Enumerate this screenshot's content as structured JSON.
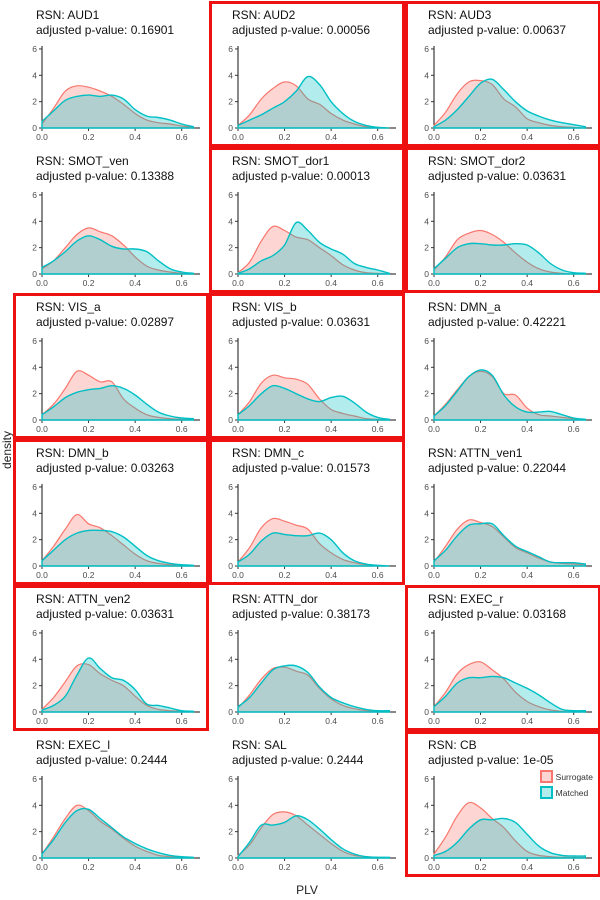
{
  "figure": {
    "ylabel": "density",
    "xlabel": "PLV",
    "colors": {
      "surrogate_line": "#F8766D",
      "surrogate_fill": "rgba(248,118,109,0.3)",
      "matched_line": "#00BFC4",
      "matched_fill": "rgba(0,191,196,0.3)",
      "highlight_border": "#ee1111"
    },
    "legend": [
      {
        "label": "Surrogate",
        "series": "surrogate"
      },
      {
        "label": "Matched",
        "series": "matched"
      }
    ]
  },
  "chart_data": {
    "type": "area",
    "description": "Grid of 18 kernel density plots of PLV per resting-state network; red-outlined panels are significant (adjusted p < 0.05). Two series per panel: Surrogate (salmon) and Matched (teal).",
    "x": [
      0,
      0.05,
      0.1,
      0.15,
      0.2,
      0.25,
      0.3,
      0.35,
      0.4,
      0.45,
      0.5,
      0.55,
      0.6,
      0.65
    ],
    "xlim": [
      0,
      0.67
    ],
    "ylim": [
      0,
      6.3
    ],
    "x_ticks": [
      {
        "v": 0,
        "label": "0.0"
      },
      {
        "v": 0.2,
        "label": "0.2"
      },
      {
        "v": 0.4,
        "label": "0.4"
      },
      {
        "v": 0.6,
        "label": "0.6"
      }
    ],
    "y_ticks": [
      {
        "v": 0,
        "label": "0"
      },
      {
        "v": 2,
        "label": "2"
      },
      {
        "v": 4,
        "label": "4"
      },
      {
        "v": 6,
        "label": "6"
      }
    ],
    "panels": [
      {
        "rsn": "AUD1",
        "title": "RSN: AUD1",
        "subtitle": "adjusted p-value: 0.16901",
        "adjusted_p": 0.16901,
        "significant": false,
        "has_legend": false,
        "surrogate": [
          0.3,
          1.5,
          2.8,
          3.2,
          3.1,
          2.8,
          2.4,
          1.8,
          1.1,
          0.6,
          0.4,
          0.3,
          0.15,
          0.05
        ],
        "matched": [
          0.5,
          1.3,
          2.1,
          2.4,
          2.5,
          2.4,
          2.5,
          2.2,
          1.4,
          0.9,
          0.8,
          0.6,
          0.3,
          0.1
        ]
      },
      {
        "rsn": "AUD2",
        "title": "RSN: AUD2",
        "subtitle": "adjusted p-value: 0.00056",
        "adjusted_p": 0.00056,
        "significant": true,
        "has_legend": false,
        "surrogate": [
          0.2,
          1.0,
          2.2,
          3.0,
          3.5,
          3.2,
          2.2,
          1.8,
          1.1,
          0.6,
          0.3,
          0.1,
          0.05,
          0
        ],
        "matched": [
          0.2,
          0.6,
          1.0,
          1.5,
          2.0,
          2.8,
          3.9,
          3.3,
          2.0,
          1.1,
          0.5,
          0.2,
          0.05,
          0
        ]
      },
      {
        "rsn": "AUD3",
        "title": "RSN: AUD3",
        "subtitle": "adjusted p-value: 0.00637",
        "adjusted_p": 0.00637,
        "significant": true,
        "has_legend": false,
        "surrogate": [
          0.2,
          1.2,
          2.6,
          3.5,
          3.6,
          3.3,
          2.2,
          1.6,
          0.7,
          0.4,
          0.2,
          0.1,
          0.05,
          0
        ],
        "matched": [
          0.1,
          0.6,
          1.4,
          2.4,
          3.4,
          3.7,
          2.9,
          2.0,
          1.3,
          0.9,
          0.6,
          0.4,
          0.25,
          0.1
        ]
      },
      {
        "rsn": "SMOT_ven",
        "title": "RSN: SMOT_ven",
        "subtitle": "adjusted p-value: 0.13388",
        "adjusted_p": 0.13388,
        "significant": false,
        "has_legend": false,
        "surrogate": [
          0.4,
          1.0,
          2.0,
          3.0,
          3.5,
          3.2,
          2.9,
          2.2,
          1.3,
          0.6,
          0.3,
          0.15,
          0.05,
          0
        ],
        "matched": [
          0.5,
          1.0,
          1.7,
          2.5,
          2.9,
          2.6,
          2.1,
          1.9,
          1.9,
          1.7,
          1.0,
          0.4,
          0.15,
          0.05
        ]
      },
      {
        "rsn": "SMOT_dor1",
        "title": "RSN: SMOT_dor1",
        "subtitle": "adjusted p-value: 0.00013",
        "adjusted_p": 0.00013,
        "significant": true,
        "has_legend": false,
        "surrogate": [
          0.1,
          0.9,
          2.5,
          3.6,
          3.3,
          2.8,
          2.6,
          2.0,
          1.4,
          0.7,
          0.3,
          0.1,
          0.05,
          0
        ],
        "matched": [
          0.05,
          0.4,
          1.0,
          1.4,
          2.2,
          3.9,
          3.3,
          2.4,
          1.9,
          1.5,
          0.8,
          0.5,
          0.3,
          0.05
        ]
      },
      {
        "rsn": "SMOT_dor2",
        "title": "RSN: SMOT_dor2",
        "subtitle": "adjusted p-value: 0.03631",
        "adjusted_p": 0.03631,
        "significant": true,
        "has_legend": false,
        "surrogate": [
          0.3,
          1.3,
          2.6,
          3.1,
          3.3,
          3.0,
          2.4,
          1.6,
          0.9,
          0.4,
          0.15,
          0.05,
          0,
          0
        ],
        "matched": [
          0.4,
          1.2,
          2.0,
          2.3,
          2.3,
          2.2,
          2.2,
          2.3,
          2.2,
          1.6,
          0.8,
          0.3,
          0.1,
          0.05
        ]
      },
      {
        "rsn": "VIS_a",
        "title": "RSN: VIS_a",
        "subtitle": "adjusted p-value: 0.02897",
        "adjusted_p": 0.02897,
        "significant": true,
        "has_legend": false,
        "surrogate": [
          0.4,
          1.2,
          2.4,
          3.7,
          3.4,
          2.9,
          2.9,
          1.6,
          0.9,
          0.4,
          0.2,
          0.1,
          0.05,
          0
        ],
        "matched": [
          0.4,
          1.0,
          1.7,
          2.1,
          2.3,
          2.4,
          2.6,
          2.4,
          1.9,
          1.2,
          0.6,
          0.3,
          0.15,
          0.1
        ]
      },
      {
        "rsn": "VIS_b",
        "title": "RSN: VIS_b",
        "subtitle": "adjusted p-value: 0.03631",
        "adjusted_p": 0.03631,
        "significant": true,
        "has_legend": false,
        "surrogate": [
          0.4,
          1.4,
          2.8,
          3.4,
          3.2,
          3.1,
          2.7,
          1.6,
          0.8,
          0.5,
          0.3,
          0.1,
          0.05,
          0
        ],
        "matched": [
          0.4,
          1.1,
          2.0,
          2.6,
          2.4,
          2.0,
          1.6,
          1.4,
          1.7,
          1.8,
          1.3,
          0.6,
          0.2,
          0.05
        ]
      },
      {
        "rsn": "DMN_a",
        "title": "RSN: DMN_a",
        "subtitle": "adjusted p-value: 0.42221",
        "adjusted_p": 0.42221,
        "significant": false,
        "has_legend": false,
        "surrogate": [
          0.3,
          1.2,
          2.3,
          3.3,
          3.7,
          3.3,
          2.0,
          1.9,
          0.9,
          0.4,
          0.3,
          0.2,
          0.1,
          0
        ],
        "matched": [
          0.3,
          1.1,
          2.2,
          3.3,
          3.8,
          3.4,
          1.9,
          1.0,
          0.6,
          0.6,
          0.65,
          0.4,
          0.15,
          0.05
        ]
      },
      {
        "rsn": "DMN_b",
        "title": "RSN: DMN_b",
        "subtitle": "adjusted p-value: 0.03263",
        "adjusted_p": 0.03263,
        "significant": true,
        "has_legend": false,
        "surrogate": [
          0.4,
          1.5,
          2.8,
          3.9,
          3.2,
          2.9,
          2.3,
          1.6,
          0.9,
          0.4,
          0.2,
          0.1,
          0.05,
          0
        ],
        "matched": [
          0.4,
          1.2,
          2.0,
          2.5,
          2.7,
          2.7,
          2.6,
          2.2,
          1.5,
          0.8,
          0.4,
          0.2,
          0.1,
          0.05
        ]
      },
      {
        "rsn": "DMN_c",
        "title": "RSN: DMN_c",
        "subtitle": "adjusted p-value: 0.01573",
        "adjusted_p": 0.01573,
        "significant": true,
        "has_legend": false,
        "surrogate": [
          0.3,
          1.4,
          2.9,
          3.6,
          3.4,
          3.1,
          2.8,
          1.7,
          1.0,
          0.5,
          0.25,
          0.1,
          0.05,
          0
        ],
        "matched": [
          0.3,
          0.9,
          1.9,
          2.5,
          2.4,
          2.3,
          2.3,
          2.5,
          2.0,
          1.0,
          0.4,
          0.15,
          0.05,
          0
        ]
      },
      {
        "rsn": "ATTN_ven1",
        "title": "RSN: ATTN_ven1",
        "subtitle": "adjusted p-value: 0.22044",
        "adjusted_p": 0.22044,
        "significant": false,
        "has_legend": false,
        "surrogate": [
          0.3,
          1.5,
          2.8,
          3.5,
          3.3,
          3.0,
          2.2,
          1.4,
          1.0,
          0.6,
          0.3,
          0.2,
          0.15,
          0.1
        ],
        "matched": [
          0.4,
          1.2,
          2.3,
          3.1,
          3.2,
          3.2,
          2.3,
          1.5,
          1.1,
          0.7,
          0.3,
          0.25,
          0.25,
          0.15
        ]
      },
      {
        "rsn": "ATTN_ven2",
        "title": "RSN: ATTN_ven2",
        "subtitle": "adjusted p-value: 0.03631",
        "adjusted_p": 0.03631,
        "significant": true,
        "has_legend": false,
        "surrogate": [
          0.2,
          1.1,
          2.3,
          3.5,
          3.6,
          2.9,
          2.4,
          2.0,
          1.2,
          0.5,
          0.2,
          0.1,
          0.05,
          0
        ],
        "matched": [
          0.15,
          0.5,
          1.2,
          2.8,
          4.1,
          3.3,
          2.6,
          2.4,
          1.7,
          0.6,
          0.5,
          0.3,
          0.1,
          0.05
        ]
      },
      {
        "rsn": "ATTN_dor",
        "title": "RSN: ATTN_dor",
        "subtitle": "adjusted p-value: 0.38173",
        "adjusted_p": 0.38173,
        "significant": false,
        "has_legend": false,
        "surrogate": [
          0.3,
          1.3,
          2.5,
          3.3,
          3.4,
          3.1,
          2.8,
          1.8,
          1.0,
          0.5,
          0.25,
          0.1,
          0.05,
          0
        ],
        "matched": [
          0.4,
          1.1,
          2.2,
          3.2,
          3.5,
          3.5,
          3.0,
          1.9,
          1.1,
          0.7,
          0.4,
          0.2,
          0.1,
          0.1
        ]
      },
      {
        "rsn": "EXEC_r",
        "title": "RSN: EXEC_r",
        "subtitle": "adjusted p-value: 0.03168",
        "adjusted_p": 0.03168,
        "significant": true,
        "has_legend": false,
        "surrogate": [
          0.4,
          1.5,
          2.9,
          3.6,
          3.8,
          3.2,
          2.5,
          1.5,
          0.8,
          0.4,
          0.15,
          0.05,
          0,
          0
        ],
        "matched": [
          0.4,
          1.2,
          2.2,
          2.6,
          2.6,
          2.7,
          2.6,
          2.2,
          1.8,
          1.3,
          0.7,
          0.2,
          0.1,
          0.1
        ]
      },
      {
        "rsn": "EXEC_l",
        "title": "RSN: EXEC_l",
        "subtitle": "adjusted p-value: 0.2444",
        "adjusted_p": 0.2444,
        "significant": false,
        "has_legend": false,
        "surrogate": [
          0.3,
          1.6,
          3.0,
          4.0,
          3.6,
          2.8,
          2.2,
          1.5,
          0.9,
          0.5,
          0.2,
          0.1,
          0.05,
          0
        ],
        "matched": [
          0.3,
          1.4,
          2.7,
          3.6,
          3.7,
          3.0,
          2.3,
          1.6,
          1.1,
          0.7,
          0.4,
          0.2,
          0.1,
          0.05
        ]
      },
      {
        "rsn": "SAL",
        "title": "RSN: SAL",
        "subtitle": "adjusted p-value: 0.2444",
        "adjusted_p": 0.2444,
        "significant": false,
        "has_legend": false,
        "surrogate": [
          0.2,
          1.0,
          2.3,
          3.3,
          3.5,
          3.2,
          2.5,
          1.8,
          1.1,
          0.5,
          0.2,
          0.1,
          0.05,
          0
        ],
        "matched": [
          0.1,
          1.2,
          2.5,
          2.5,
          2.7,
          3.2,
          2.9,
          2.2,
          1.4,
          0.7,
          0.3,
          0.1,
          0.05,
          0.05
        ]
      },
      {
        "rsn": "CB",
        "title": "RSN: CB",
        "subtitle": "adjusted p-value: 1e-05",
        "adjusted_p": 1e-05,
        "significant": true,
        "has_legend": true,
        "surrogate": [
          0.3,
          1.6,
          3.2,
          4.2,
          3.8,
          3.0,
          2.3,
          1.3,
          0.5,
          0.2,
          0.1,
          0.05,
          0.05,
          0.05
        ],
        "matched": [
          0.2,
          0.5,
          1.2,
          2.2,
          2.9,
          2.9,
          3.0,
          2.7,
          1.8,
          0.9,
          0.4,
          0.2,
          0.15,
          0.15
        ]
      }
    ]
  }
}
